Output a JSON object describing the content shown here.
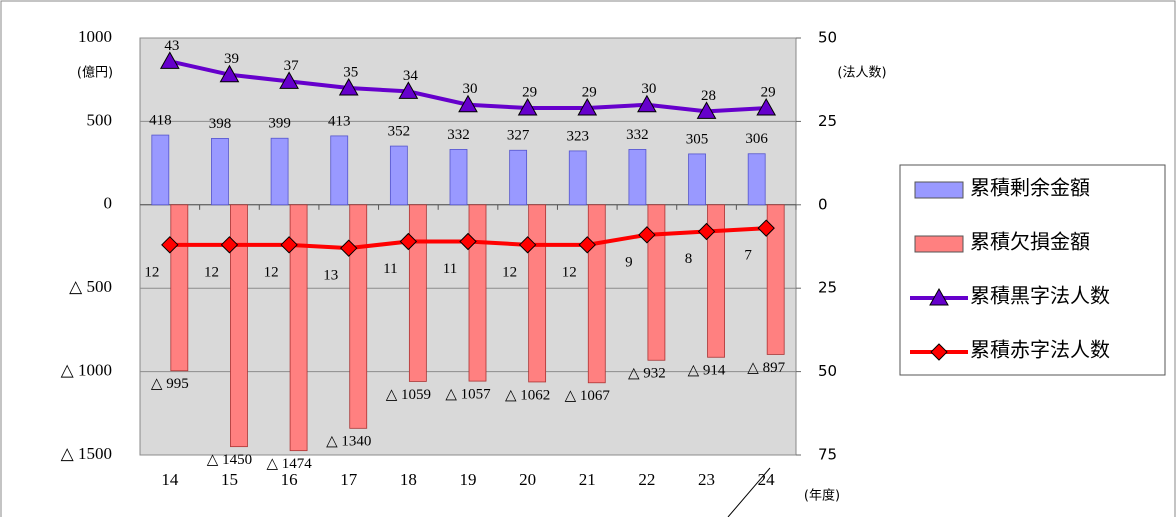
{
  "chart_data": {
    "type": "bar",
    "y_unit": "(億円)",
    "y2_unit": "(法人数)",
    "x_unit": "(年度)",
    "categories": [
      "14",
      "15",
      "16",
      "17",
      "18",
      "19",
      "20",
      "21",
      "22",
      "23",
      "24"
    ],
    "ylim": [
      -1500,
      1000
    ],
    "yticks": [
      1000,
      500,
      0,
      {
        "value": -500,
        "label": "△ 500"
      },
      {
        "value": -1000,
        "label": "△ 1000"
      },
      {
        "value": -1500,
        "label": "△ 1500"
      }
    ],
    "y2lim": [
      -75,
      50
    ],
    "y2ticks": [
      50,
      25,
      0,
      {
        "value": -25,
        "label": "25"
      },
      {
        "value": -50,
        "label": "50"
      },
      {
        "value": -75,
        "label": "75"
      }
    ],
    "grid": true,
    "legend": "right",
    "series": [
      {
        "name": "累積剰余金額",
        "type": "bar",
        "color": "#9999ff",
        "values": [
          418,
          398,
          399,
          413,
          352,
          332,
          327,
          323,
          332,
          305,
          306
        ]
      },
      {
        "name": "累積欠損金額",
        "type": "bar",
        "color": "#ff8080",
        "values": [
          -995,
          -1450,
          -1474,
          -1340,
          -1059,
          -1057,
          -1062,
          -1067,
          -932,
          -914,
          -897
        ],
        "value_labels": [
          "△ 995",
          "△ 1450",
          "△ 1474",
          "△ 1340",
          "△ 1059",
          "△ 1057",
          "△ 1062",
          "△ 1067",
          "△ 932",
          "△ 914",
          "△ 897"
        ]
      },
      {
        "name": "累積黒字法人数",
        "type": "line",
        "marker": "triangle",
        "axis": "y2",
        "color": "#6600cc",
        "values": [
          43,
          39,
          37,
          35,
          34,
          30,
          29,
          29,
          30,
          28,
          29
        ]
      },
      {
        "name": "累積赤字法人数",
        "type": "line",
        "marker": "diamond",
        "axis": "y2",
        "inverted": true,
        "color": "#ff0000",
        "values": [
          12,
          12,
          12,
          13,
          11,
          11,
          12,
          12,
          9,
          8,
          7
        ]
      }
    ]
  }
}
